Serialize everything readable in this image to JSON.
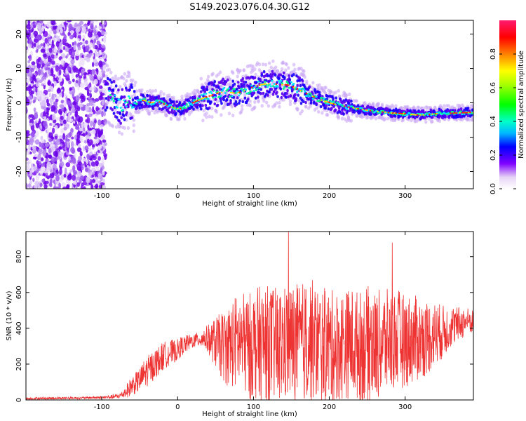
{
  "figure": {
    "title": "S149.2023.076.04.30.G12"
  },
  "chart_data": [
    {
      "type": "heatmap",
      "title": "S149.2023.076.04.30.G12",
      "xlabel": "Height of straight line (km)",
      "ylabel": "Frequency (Hz)",
      "xlim": [
        -200,
        390
      ],
      "ylim": [
        -25,
        24
      ],
      "xticks": [
        -100,
        0,
        100,
        200,
        300
      ],
      "yticks": [
        -20,
        -10,
        0,
        10,
        20
      ],
      "colorbar": {
        "label": "Normalized spectral amplitude",
        "range": [
          0.0,
          1.0
        ],
        "ticks": [
          0.0,
          0.2,
          0.4,
          0.6,
          0.8
        ]
      },
      "noise_region_x": [
        -200,
        -95
      ],
      "ridge": {
        "x": [
          -95,
          -85,
          -75,
          -65,
          -55,
          -45,
          -35,
          -25,
          -15,
          -5,
          5,
          15,
          25,
          35,
          45,
          55,
          65,
          75,
          85,
          95,
          105,
          115,
          125,
          135,
          145,
          155,
          165,
          175,
          185,
          195,
          205,
          215,
          225,
          235,
          245,
          255,
          265,
          275,
          285,
          295,
          305,
          315,
          325,
          335,
          345,
          355,
          365,
          375,
          385
        ],
        "y": [
          2.5,
          1.5,
          -1,
          0.5,
          0,
          0.8,
          0,
          0.3,
          -0.6,
          -1.5,
          -1.8,
          -0.5,
          0.5,
          1.5,
          2.2,
          3,
          3.2,
          2.8,
          3.2,
          4.2,
          5,
          5.5,
          5.6,
          5.3,
          5.2,
          4.4,
          3.2,
          2.2,
          1.2,
          0.4,
          -0.3,
          -0.8,
          -1.2,
          -1.6,
          -2,
          -2.3,
          -2.5,
          -2.8,
          -3,
          -3.1,
          -3.3,
          -3.5,
          -3.5,
          -3.3,
          -3.1,
          -3,
          -3,
          -2.9,
          -2.8
        ]
      }
    },
    {
      "type": "line",
      "xlabel": "Height of straight line (km)",
      "ylabel": "SNR (10 * v/v)",
      "xlim": [
        -200,
        390
      ],
      "ylim": [
        0,
        940
      ],
      "xticks": [
        -100,
        0,
        100,
        200,
        300
      ],
      "yticks": [
        0,
        200,
        400,
        600,
        800
      ],
      "line_color": "#ee3333",
      "series": [
        {
          "x": [
            -200,
            -180,
            -160,
            -140,
            -120,
            -100,
            -90,
            -80,
            -75,
            -70,
            -65,
            -60,
            -55,
            -50,
            -45,
            -40,
            -35,
            -30,
            -25,
            -20,
            -15,
            -10,
            -5,
            0,
            5,
            10,
            15,
            20,
            25,
            30,
            35,
            40,
            45,
            50,
            55,
            60,
            65,
            70,
            75,
            80,
            85,
            90,
            95,
            100,
            110,
            120,
            130,
            140,
            150,
            160,
            170,
            175,
            180,
            190,
            200,
            210,
            220,
            230,
            240,
            250,
            255,
            260,
            270,
            280,
            290,
            300,
            310,
            320,
            330,
            340,
            350,
            360,
            370,
            380,
            390
          ],
          "mean": [
            8,
            9,
            10,
            11,
            12,
            14,
            16,
            20,
            25,
            40,
            60,
            80,
            95,
            110,
            140,
            160,
            180,
            200,
            220,
            240,
            255,
            265,
            270,
            280,
            300,
            310,
            320,
            330,
            335,
            340,
            345,
            340,
            330,
            320,
            310,
            300,
            300,
            310,
            320,
            330,
            320,
            310,
            300,
            310,
            320,
            310,
            300,
            310,
            320,
            320,
            330,
            340,
            320,
            310,
            300,
            300,
            310,
            320,
            300,
            310,
            320,
            300,
            320,
            330,
            340,
            330,
            340,
            340,
            350,
            370,
            380,
            410,
            420,
            440,
            440
          ],
          "spread": [
            6,
            6,
            6,
            6,
            6,
            8,
            10,
            14,
            18,
            30,
            45,
            55,
            60,
            65,
            80,
            85,
            85,
            85,
            80,
            80,
            75,
            70,
            65,
            60,
            55,
            50,
            45,
            40,
            40,
            45,
            60,
            80,
            110,
            140,
            170,
            200,
            220,
            240,
            260,
            270,
            280,
            290,
            300,
            310,
            320,
            330,
            330,
            330,
            330,
            330,
            340,
            360,
            330,
            320,
            320,
            310,
            310,
            310,
            310,
            320,
            340,
            310,
            300,
            290,
            280,
            260,
            250,
            230,
            210,
            180,
            150,
            120,
            100,
            80,
            70
          ]
        }
      ]
    }
  ]
}
